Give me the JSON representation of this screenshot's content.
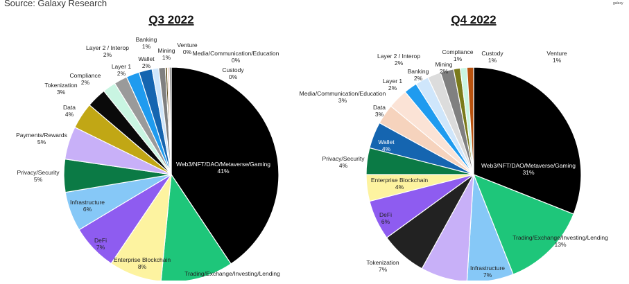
{
  "source": "Source: Galaxy Research",
  "logo": "galaxy",
  "chart_data": [
    {
      "type": "pie",
      "title": "Q3 2022",
      "categories": [
        "Web3/NFT/DAO/Metaverse/Gaming",
        "Trading/Exchange/Investing/Lending",
        "Enterprise Blockchain",
        "DeFi",
        "Infrastructure",
        "Privacy/Security",
        "Payments/Rewards",
        "Data",
        "Tokenization",
        "Compliance",
        "Layer 1",
        "Layer 2 / Interop",
        "Wallet",
        "Banking",
        "Mining",
        "Venture",
        "Media/Communication/Education",
        "Custody"
      ],
      "values": [
        41,
        11,
        8,
        7,
        6,
        5,
        5,
        4,
        3,
        2,
        2,
        2,
        2,
        1,
        1,
        0.3,
        0.3,
        0.3
      ],
      "value_labels": [
        "41%",
        null,
        "8%",
        "7%",
        "6%",
        "5%",
        "5%",
        "4%",
        "3%",
        "2%",
        "2%",
        "2%",
        "2%",
        "1%",
        "1%",
        "0%",
        "0%",
        "0%"
      ],
      "colors": [
        "#000000",
        "#1ec67a",
        "#fdf3a0",
        "#8e5cf0",
        "#86c8f7",
        "#0b7a45",
        "#c8b0f8",
        "#c1a715",
        "#0a0a0a",
        "#c9f5e2",
        "#9a9a9a",
        "#1f9bef",
        "#1565b0",
        "#cfe6fb",
        "#808080",
        "#5a4a1a",
        "#f5d6c6",
        "#8a8a8a"
      ]
    },
    {
      "type": "pie",
      "title": "Q4 2022",
      "categories": [
        "Web3/NFT/DAO/Metaverse/Gaming",
        "Trading/Exchange/Investing/Lending",
        "Infrastructure",
        null,
        "Tokenization",
        "DeFi",
        "Enterprise Blockchain",
        "Privacy/Security",
        "Wallet",
        "Data",
        "Media/Communication/Education",
        "Layer 1",
        "Layer 2 / Interop",
        "Banking",
        "Mining",
        "Compliance",
        "Custody",
        "Venture"
      ],
      "values": [
        31,
        13,
        7,
        7,
        7,
        6,
        4,
        4,
        4,
        3,
        3,
        2,
        2,
        2,
        2,
        1,
        1,
        1
      ],
      "value_labels": [
        "31%",
        "13%",
        "7%",
        null,
        "7%",
        "6%",
        "4%",
        "4%",
        "4%",
        "3%",
        "3%",
        "2%",
        "2%",
        "2%",
        "2%",
        "1%",
        "1%",
        "1%"
      ],
      "colors": [
        "#000000",
        "#1ec67a",
        "#86c8f7",
        "#c8b0f8",
        "#222222",
        "#8e5cf0",
        "#fdf3a0",
        "#0b7a45",
        "#1565b0",
        "#f6d3bd",
        "#fbe3d6",
        "#1f9bef",
        "#cfe6fb",
        "#dcdcdc",
        "#808080",
        "#7a7a1a",
        "#c9f5e2",
        "#b8520e"
      ]
    }
  ]
}
